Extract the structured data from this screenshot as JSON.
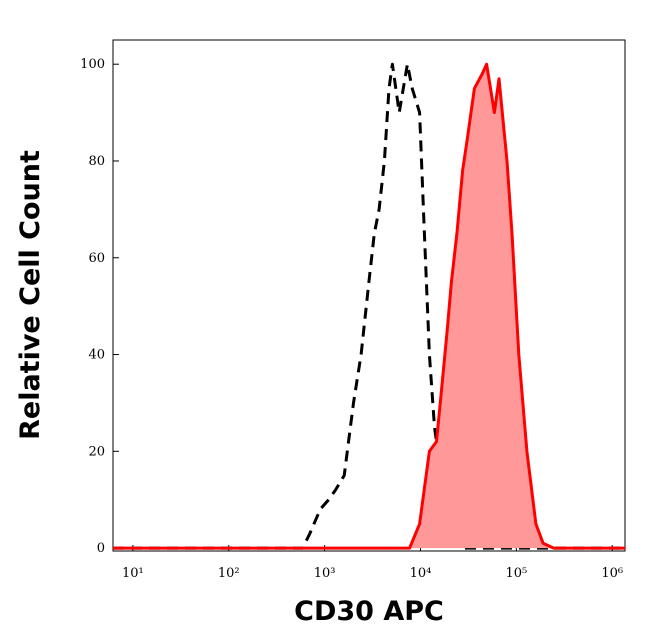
{
  "chart_data": {
    "type": "histogram-overlay",
    "xlabel": "CD30 APC",
    "ylabel": "Relative Cell Count",
    "xscale": "log",
    "xlim": [
      6.2,
      1360000
    ],
    "ylim": [
      -0.6,
      105
    ],
    "xticks": [
      {
        "value": 10,
        "label": "10¹"
      },
      {
        "value": 100,
        "label": "10²"
      },
      {
        "value": 1000,
        "label": "10³"
      },
      {
        "value": 10000,
        "label": "10⁴"
      },
      {
        "value": 100000,
        "label": "10⁵"
      },
      {
        "value": 1000000,
        "label": "10⁶"
      }
    ],
    "yticks": [
      0,
      20,
      40,
      60,
      80,
      100
    ],
    "series": [
      {
        "color": "#000000",
        "dashed": true,
        "x": [
          6.2,
          590,
          700,
          900,
          1100,
          1300,
          1600,
          2000,
          2400,
          2900,
          3300,
          3700,
          4200,
          4700,
          5100,
          6000,
          7300,
          8200,
          9800,
          11000,
          12400,
          14000,
          17800,
          22000,
          29000,
          1360000
        ],
        "values": [
          0,
          0,
          3,
          8,
          10,
          12,
          15,
          30,
          40,
          55,
          65,
          70,
          80,
          95,
          100,
          90,
          100,
          95,
          90,
          65,
          40,
          25,
          10,
          3,
          0,
          0
        ]
      },
      {
        "color": "#ff0000",
        "fill": "#ff9999",
        "x": [
          6.2,
          7700,
          9800,
          12400,
          14700,
          17000,
          19000,
          21000,
          24000,
          27500,
          31000,
          36500,
          44000,
          49000,
          59000,
          66000,
          80000,
          90000,
          106000,
          129000,
          160000,
          190000,
          245000,
          1360000
        ],
        "values": [
          0,
          0,
          5,
          20,
          22,
          35,
          45,
          55,
          65,
          78,
          85,
          95,
          98,
          100,
          90,
          97,
          80,
          65,
          40,
          20,
          5,
          1,
          0,
          0
        ]
      }
    ]
  }
}
